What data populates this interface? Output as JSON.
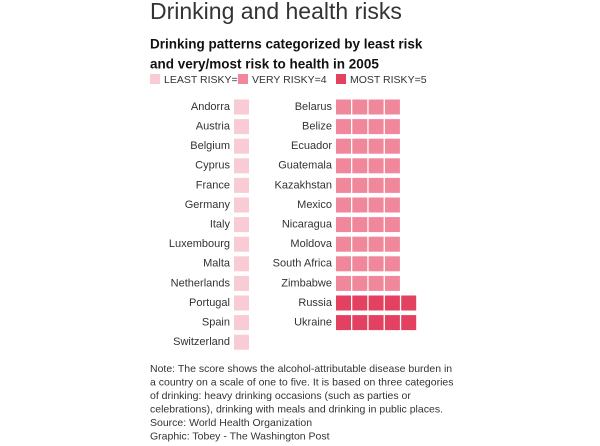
{
  "chart_data": {
    "type": "unit",
    "title": "Drinking and health risks",
    "subtitle": [
      "Drinking patterns categorized by least risk",
      "and very/most risk to health in 2005"
    ],
    "legend": [
      {
        "label": "LEAST RISKY=1",
        "value": 1,
        "color": "#f9cbd5"
      },
      {
        "label": "VERY RISKY=4",
        "value": 4,
        "color": "#f0879a"
      },
      {
        "label": "MOST RISKY=5",
        "value": 5,
        "color": "#e2425f"
      }
    ],
    "groups": [
      {
        "categories": [
          "Andorra",
          "Austria",
          "Belgium",
          "Cyprus",
          "France",
          "Germany",
          "Italy",
          "Luxembourg",
          "Malta",
          "Netherlands",
          "Portugal",
          "Spain",
          "Switzerland"
        ],
        "values": [
          1,
          1,
          1,
          1,
          1,
          1,
          1,
          1,
          1,
          1,
          1,
          1,
          1
        ]
      },
      {
        "categories": [
          "Belarus",
          "Belize",
          "Ecuador",
          "Guatemala",
          "Kazakhstan",
          "Mexico",
          "Nicaragua",
          "Moldova",
          "South Africa",
          "Zimbabwe",
          "Russia",
          "Ukraine"
        ],
        "values": [
          4,
          4,
          4,
          4,
          4,
          4,
          4,
          4,
          4,
          4,
          5,
          5
        ]
      }
    ],
    "note": [
      "Note: The score shows the alcohol-attributable disease burden in",
      "a country on a scale of one to five. It is based on three categories",
      "of drinking: heavy drinking occasions (such as parties or",
      "celebrations), drinking with meals and drinking in public places."
    ],
    "source": "Source: World Health Organization",
    "credit": "Graphic: Tobey - The Washington Post"
  }
}
